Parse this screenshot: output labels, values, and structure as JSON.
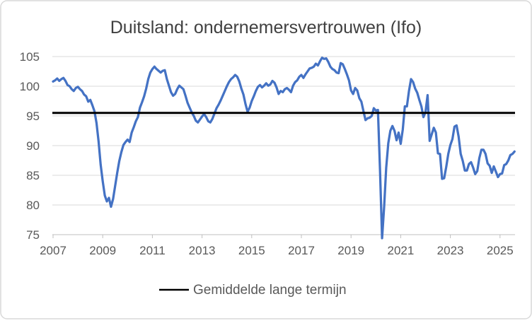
{
  "window": {
    "background": "#FFFFFF",
    "border_color": "#D9D9D9"
  },
  "colors": {
    "series_blue": "#4472C4",
    "reference_black": "#000000",
    "gridline": "#D9D9D9",
    "axis_line": "#BFBFBF",
    "axis_text": "#595959",
    "title_text": "#404040"
  },
  "chart_data": {
    "type": "line",
    "title": "Duitsland: ondernemersvertrouwen (Ifo)",
    "xlabel": "",
    "ylabel": "",
    "ylim": [
      75,
      105
    ],
    "y_ticks": [
      75,
      80,
      85,
      90,
      95,
      100,
      105
    ],
    "x_tick_labels": [
      "2007",
      "2009",
      "2011",
      "2013",
      "2015",
      "2017",
      "2019",
      "2021",
      "2023",
      "2025"
    ],
    "x_tick_interval_years": 2,
    "x_range": [
      "2007-01",
      "2025-08"
    ],
    "frequency": "monthly",
    "grid": "horizontal",
    "legend_position": "bottom",
    "reference_line": {
      "label": "Gemiddelde lange termijn",
      "value": 95.5,
      "color": "#000000"
    },
    "series": [
      {
        "name": "Ifo ondernemersvertrouwen",
        "color": "#4472C4",
        "start": "2007-01",
        "values": [
          100.8,
          101.0,
          101.3,
          100.9,
          101.2,
          101.4,
          100.9,
          100.2,
          100.0,
          99.5,
          99.2,
          99.7,
          99.9,
          99.5,
          99.2,
          98.6,
          98.3,
          97.4,
          97.7,
          96.8,
          95.8,
          93.8,
          90.7,
          86.8,
          84.0,
          81.6,
          80.6,
          81.2,
          79.7,
          81.0,
          83.2,
          85.4,
          87.4,
          88.9,
          90.1,
          90.6,
          91.0,
          90.6,
          92.2,
          93.1,
          94.1,
          94.8,
          96.4,
          97.3,
          98.3,
          99.6,
          101.2,
          102.3,
          102.9,
          103.3,
          102.9,
          102.6,
          102.3,
          102.6,
          102.7,
          101.2,
          100.1,
          99.0,
          98.4,
          98.7,
          99.5,
          100.1,
          99.8,
          99.5,
          98.4,
          97.2,
          96.4,
          95.6,
          95.0,
          94.2,
          93.9,
          94.4,
          94.9,
          95.3,
          94.8,
          94.1,
          93.9,
          94.5,
          95.4,
          96.3,
          96.9,
          97.6,
          98.4,
          99.2,
          100.0,
          100.7,
          101.2,
          101.5,
          101.9,
          101.6,
          100.8,
          99.6,
          98.6,
          97.0,
          95.7,
          96.4,
          97.5,
          98.3,
          99.2,
          99.9,
          100.2,
          99.8,
          100.1,
          100.5,
          100.1,
          100.3,
          100.9,
          100.6,
          99.8,
          98.7,
          99.2,
          99.0,
          99.5,
          99.7,
          99.4,
          99.0,
          100.1,
          100.7,
          101.0,
          101.6,
          101.9,
          101.4,
          102.0,
          102.5,
          103.0,
          103.1,
          103.3,
          103.8,
          103.5,
          104.2,
          104.8,
          104.6,
          104.7,
          104.1,
          103.3,
          102.9,
          102.7,
          102.3,
          102.2,
          103.9,
          103.7,
          102.9,
          102.0,
          101.0,
          99.3,
          98.7,
          99.7,
          99.3,
          98.0,
          97.4,
          95.8,
          94.3,
          94.6,
          94.7,
          95.0,
          96.3,
          95.9,
          96.0,
          85.9,
          74.4,
          79.7,
          86.3,
          90.4,
          92.5,
          93.3,
          92.5,
          90.9,
          92.2,
          90.3,
          92.7,
          96.6,
          96.6,
          99.2,
          101.2,
          100.7,
          99.6,
          98.9,
          97.7,
          96.6,
          94.8,
          95.7,
          98.5,
          90.8,
          91.9,
          93.0,
          92.2,
          88.7,
          88.6,
          84.4,
          84.5,
          86.4,
          88.6,
          90.1,
          91.1,
          93.2,
          93.4,
          91.5,
          88.6,
          87.4,
          85.8,
          85.8,
          86.9,
          87.2,
          86.3,
          85.2,
          85.7,
          87.9,
          89.3,
          89.3,
          88.6,
          87.0,
          86.6,
          85.4,
          86.5,
          85.6,
          84.7,
          85.2,
          85.3,
          86.7,
          86.9,
          87.5,
          88.4,
          88.6,
          89.0
        ]
      }
    ]
  },
  "legend": {
    "items": [
      {
        "label": "Gemiddelde lange termijn",
        "color": "#000000",
        "marker": "line"
      }
    ]
  }
}
